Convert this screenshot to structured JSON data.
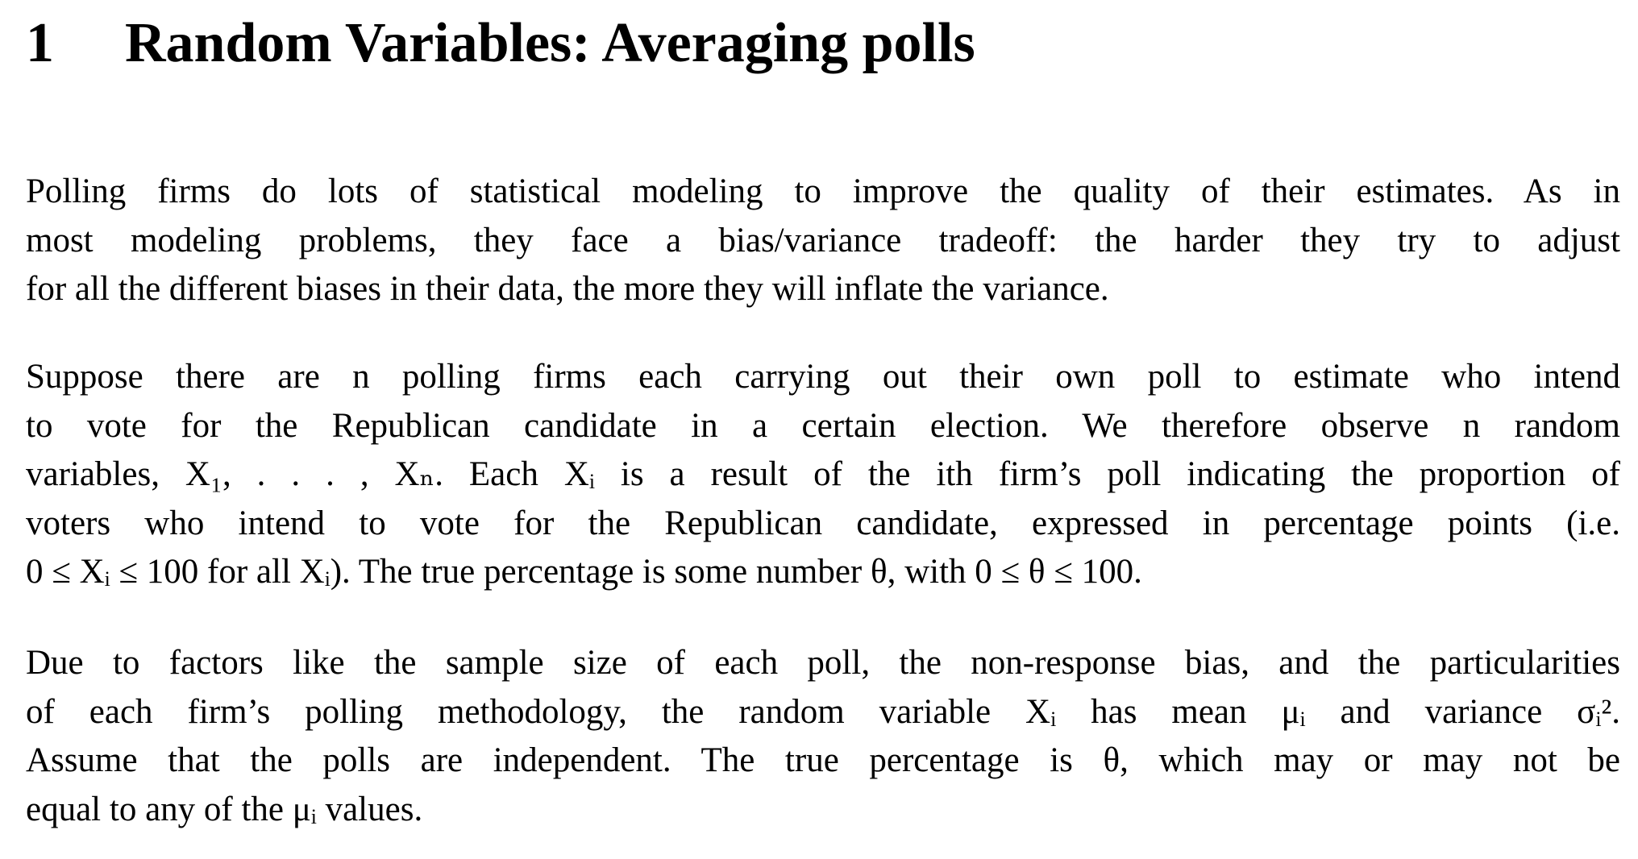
{
  "heading": {
    "number": "1",
    "title": "Random Variables: Averaging polls"
  },
  "paragraphs": [
    [
      "Polling firms do lots of statistical modeling to improve the quality of their estimates. As in",
      "most modeling problems, they face a bias/variance tradeoff: the harder they try to adjust",
      "for all the different biases in their data, the more they will inflate the variance."
    ],
    [
      "Suppose there are n polling firms each carrying out their own poll to estimate who intend",
      "to vote for the Republican candidate in a certain election. We therefore observe n random",
      "variables, X₁, . . . , Xₙ. Each Xᵢ is a result of the ith firm’s poll indicating the proportion of",
      "voters who intend to vote for the Republican candidate, expressed in percentage points (i.e.",
      "0 ≤ Xᵢ ≤ 100 for all Xᵢ). The true percentage is some number θ, with 0 ≤ θ ≤ 100."
    ],
    [
      "Due to factors like the sample size of each poll, the non-response bias, and the particularities",
      "of each firm’s polling methodology, the random variable Xᵢ has mean μᵢ and variance σᵢ².",
      "Assume that the polls are independent. The true percentage is θ, which may or may not be",
      "equal to any of the μᵢ values."
    ]
  ]
}
